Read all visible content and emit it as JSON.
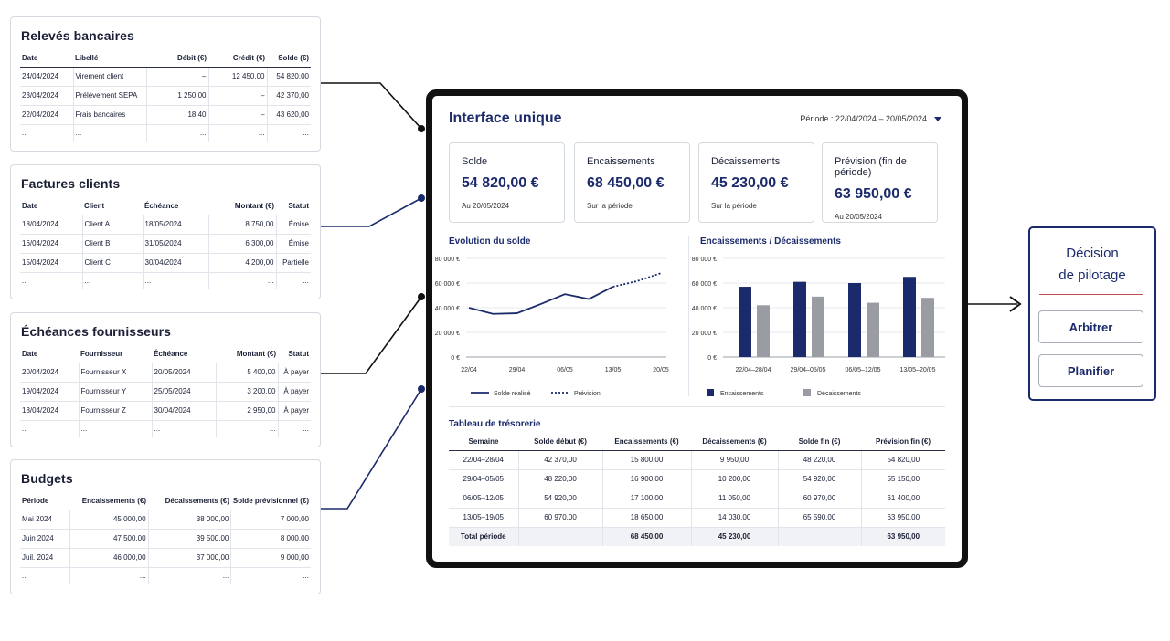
{
  "colors": {
    "navy": "#1b2a6b",
    "grey_bar": "#9a9ca3",
    "accent_line": "#c0504d"
  },
  "releves": {
    "title": "Relevés bancaires",
    "headers": [
      "Date",
      "Libellé",
      "Débit (€)",
      "Crédit (€)",
      "Solde (€)"
    ],
    "rows": [
      [
        "24/04/2024",
        "Virement client",
        "–",
        "12 450,00",
        "54 820,00"
      ],
      [
        "23/04/2024",
        "Prélèvement SEPA",
        "1 250,00",
        "–",
        "42 370,00"
      ],
      [
        "22/04/2024",
        "Frais bancaires",
        "18,40",
        "–",
        "43 620,00"
      ],
      [
        "...",
        "...",
        "...",
        "...",
        "..."
      ]
    ]
  },
  "factures": {
    "title": "Factures clients",
    "headers": [
      "Date",
      "Client",
      "Échéance",
      "Montant (€)",
      "Statut"
    ],
    "rows": [
      [
        "18/04/2024",
        "Client A",
        "18/05/2024",
        "8 750,00",
        "Émise"
      ],
      [
        "16/04/2024",
        "Client B",
        "31/05/2024",
        "6 300,00",
        "Émise"
      ],
      [
        "15/04/2024",
        "Client C",
        "30/04/2024",
        "4 200,00",
        "Partielle"
      ],
      [
        "...",
        "...",
        "...",
        "...",
        "..."
      ]
    ]
  },
  "echeances": {
    "title": "Échéances fournisseurs",
    "headers": [
      "Date",
      "Fournisseur",
      "Échéance",
      "Montant (€)",
      "Statut"
    ],
    "rows": [
      [
        "20/04/2024",
        "Fournisseur X",
        "20/05/2024",
        "5 400,00",
        "À payer"
      ],
      [
        "19/04/2024",
        "Fournisseur Y",
        "25/05/2024",
        "3 200,00",
        "À payer"
      ],
      [
        "18/04/2024",
        "Fournisseur Z",
        "30/04/2024",
        "2 950,00",
        "À payer"
      ],
      [
        "...",
        "...",
        "...",
        "...",
        "..."
      ]
    ]
  },
  "budgets": {
    "title": "Budgets",
    "headers": [
      "Période",
      "Encaissements (€)",
      "Décaissements (€)",
      "Solde prévisionnel (€)"
    ],
    "rows": [
      [
        "Mai 2024",
        "45 000,00",
        "38 000,00",
        "7 000,00"
      ],
      [
        "Juin 2024",
        "47 500,00",
        "39 500,00",
        "8 000,00"
      ],
      [
        "Juil. 2024",
        "46 000,00",
        "37 000,00",
        "9 000,00"
      ],
      [
        "...",
        "...",
        "...",
        "..."
      ]
    ]
  },
  "interface": {
    "title": "Interface unique",
    "period": "Période : 22/04/2024 – 20/05/2024",
    "kpis": [
      {
        "label": "Solde",
        "value": "54 820,00 €",
        "sub": "Au 20/05/2024"
      },
      {
        "label": "Encaissements",
        "value": "68 450,00 €",
        "sub": "Sur la période"
      },
      {
        "label": "Décaissements",
        "value": "45 230,00 €",
        "sub": "Sur la période"
      },
      {
        "label": "Prévision (fin de période)",
        "value": "63 950,00 €",
        "sub": "Au 20/05/2024"
      }
    ],
    "treasury": {
      "title": "Tableau de trésorerie",
      "headers": [
        "Semaine",
        "Solde début (€)",
        "Encaissements (€)",
        "Décaissements (€)",
        "Solde fin (€)",
        "Prévision fin (€)"
      ],
      "rows": [
        [
          "22/04–28/04",
          "42 370,00",
          "15 800,00",
          "9 950,00",
          "48 220,00",
          "54 820,00"
        ],
        [
          "29/04–05/05",
          "48 220,00",
          "16 900,00",
          "10 200,00",
          "54 920,00",
          "55 150,00"
        ],
        [
          "06/05–12/05",
          "54 920,00",
          "17 100,00",
          "11 050,00",
          "60 970,00",
          "61 400,00"
        ],
        [
          "13/05–19/05",
          "60 970,00",
          "18 650,00",
          "14 030,00",
          "65 590,00",
          "63 950,00"
        ]
      ],
      "total": [
        "Total période",
        "",
        "68 450,00",
        "45 230,00",
        "",
        "63 950,00"
      ]
    }
  },
  "chart_data": [
    {
      "type": "line",
      "title": "Évolution du solde",
      "y_tick_labels": [
        "0 €",
        "20 000 €",
        "40 000 €",
        "60 000 €",
        "80 000 €"
      ],
      "ylim": [
        0,
        80000
      ],
      "x_tick_labels": [
        "22/04",
        "29/04",
        "06/05",
        "13/05",
        "20/05"
      ],
      "x_range": [
        0,
        4
      ],
      "series": [
        {
          "name": "Solde réalisé",
          "style": "solid",
          "x": [
            0,
            0.5,
            1,
            1.5,
            2,
            2.5,
            3
          ],
          "values": [
            40000,
            35000,
            35500,
            43000,
            51000,
            47000,
            57000
          ]
        },
        {
          "name": "Prévision",
          "style": "dotted",
          "x": [
            3,
            3.5,
            4
          ],
          "values": [
            57000,
            61500,
            68000
          ]
        }
      ],
      "legend": "bottom",
      "grid": true
    },
    {
      "type": "bar",
      "title": "Encaissements / Décaissements",
      "y_tick_labels": [
        "0 €",
        "20 000 €",
        "40 000 €",
        "60 000 €",
        "80 000 €"
      ],
      "ylim": [
        0,
        80000
      ],
      "categories": [
        "22/04–28/04",
        "29/04–05/05",
        "06/05–12/05",
        "13/05–20/05"
      ],
      "series": [
        {
          "name": "Encaissements",
          "values": [
            57000,
            61000,
            60000,
            65000
          ]
        },
        {
          "name": "Décaissements",
          "values": [
            42000,
            49000,
            44000,
            48000
          ]
        }
      ],
      "legend": "bottom",
      "grid": true
    }
  ],
  "decision": {
    "title_line1": "Décision",
    "title_line2": "de pilotage",
    "buttons": [
      "Arbitrer",
      "Planifier"
    ]
  }
}
